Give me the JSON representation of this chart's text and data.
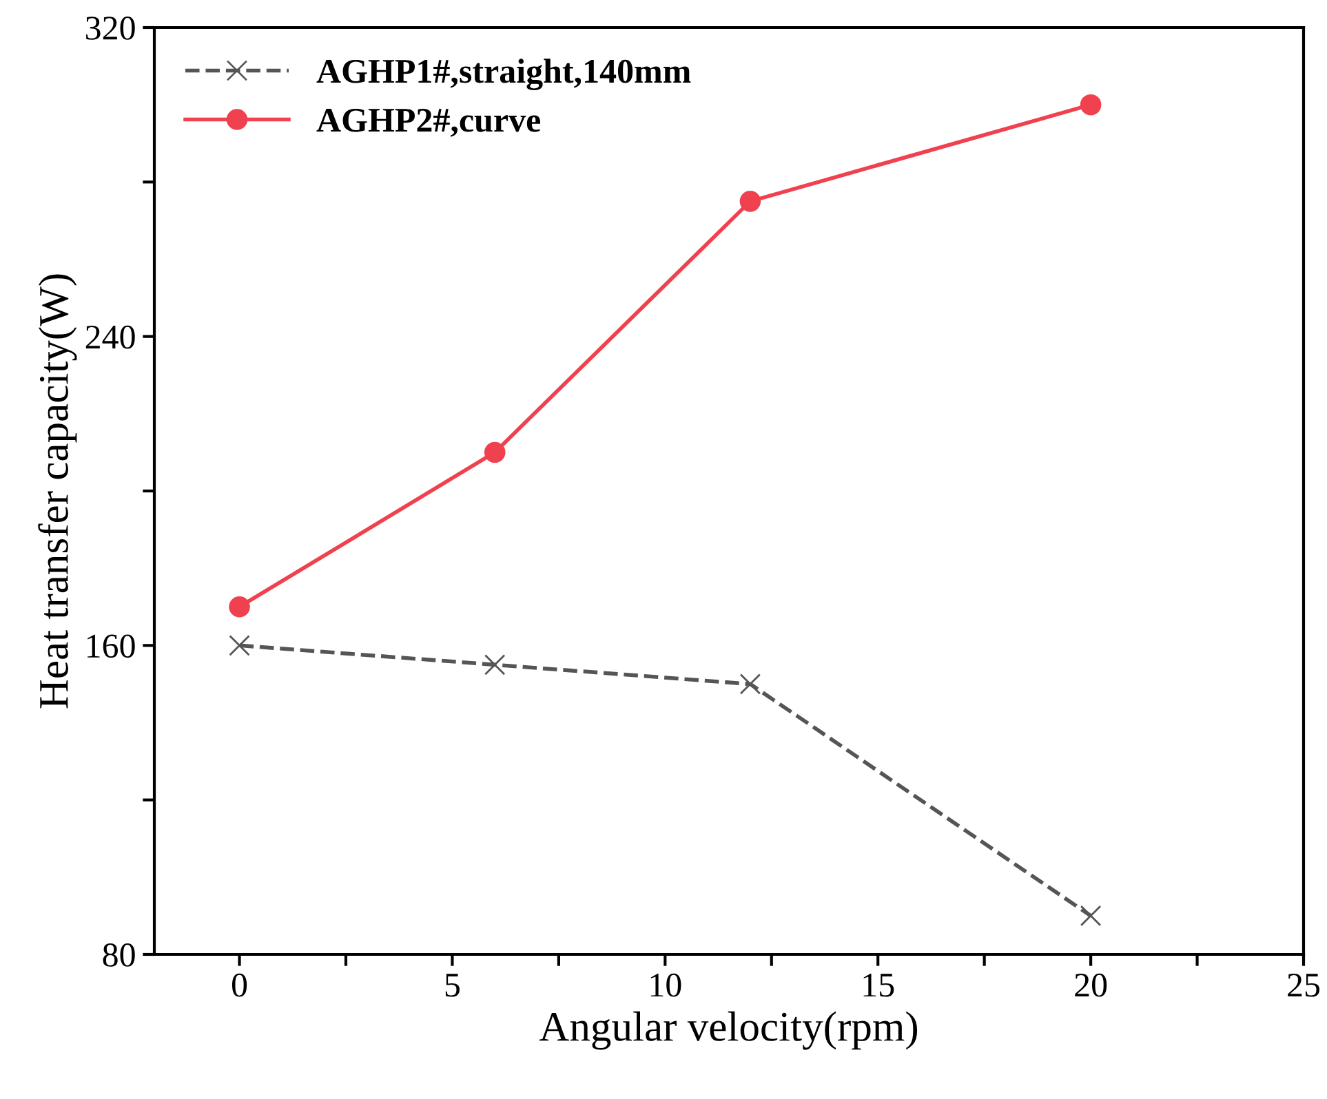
{
  "chart_data": {
    "type": "line",
    "xlabel": "Angular velocity(rpm)",
    "ylabel": "Heat transfer capacity(W)",
    "x": [
      0,
      6,
      12,
      20
    ],
    "series": [
      {
        "name": "AGHP1#,straight,140mm",
        "color": "#555555",
        "values": [
          160,
          155,
          150,
          90
        ],
        "marker": "cross",
        "line_style": "dashed"
      },
      {
        "name": "AGHP2#,curve",
        "color": "#f0414f",
        "values": [
          170,
          210,
          275,
          300
        ],
        "marker": "circle",
        "line_style": "solid"
      }
    ],
    "xlim": [
      -2,
      25
    ],
    "xticks": [
      0,
      {
        "value": 2.5,
        "label": null
      },
      5,
      {
        "value": 7.5,
        "label": null
      },
      10,
      {
        "value": 12.5,
        "label": null
      },
      15,
      {
        "value": 17.5,
        "label": null
      },
      20,
      {
        "value": 22.5,
        "label": null
      },
      25
    ],
    "ylim": [
      80,
      320
    ],
    "yticks": [
      80,
      {
        "value": 120,
        "label": null
      },
      160,
      {
        "value": 200,
        "label": null
      },
      240,
      {
        "value": 280,
        "label": null
      },
      320
    ],
    "grid": false,
    "legend": "top left"
  }
}
